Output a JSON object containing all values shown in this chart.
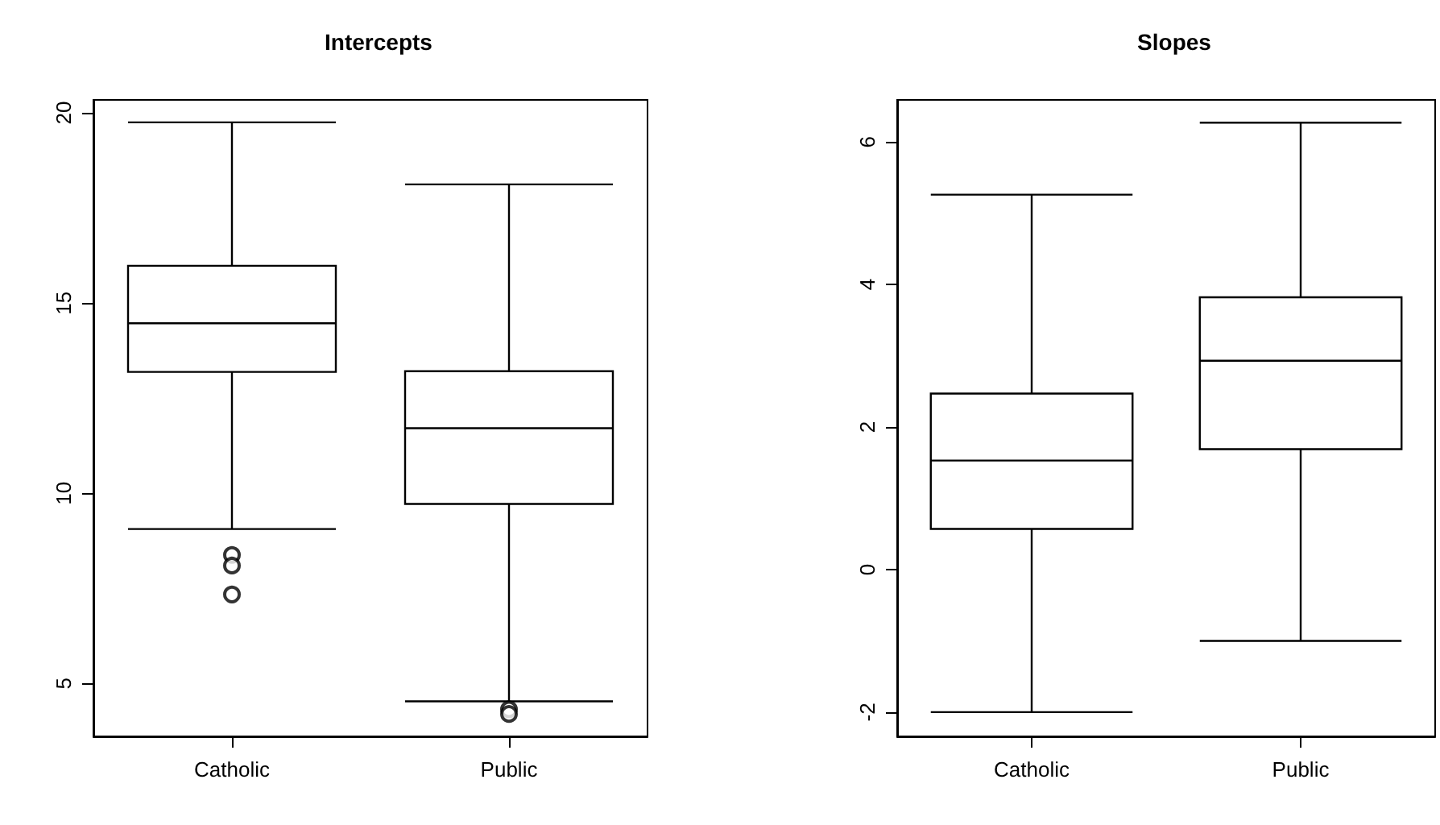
{
  "chart_data": [
    {
      "type": "box",
      "title": "Intercepts",
      "categories": [
        "Catholic",
        "Public"
      ],
      "boxes": [
        {
          "low": 9.06,
          "q1": 13.19,
          "median": 14.47,
          "q3": 15.98,
          "high": 19.75,
          "outliers": [
            8.38,
            8.1,
            7.34
          ]
        },
        {
          "low": 4.53,
          "q1": 9.72,
          "median": 11.71,
          "q3": 13.21,
          "high": 18.12,
          "outliers": [
            4.32,
            4.2
          ]
        }
      ],
      "ylim": [
        3.61,
        20.34
      ],
      "yticks": [
        5,
        10,
        15,
        20
      ],
      "grid": false,
      "marker": "circle"
    },
    {
      "type": "box",
      "title": "Slopes",
      "categories": [
        "Catholic",
        "Public"
      ],
      "boxes": [
        {
          "low": -2.0,
          "q1": 0.57,
          "median": 1.53,
          "q3": 2.47,
          "high": 5.26
        },
        {
          "low": -1.0,
          "q1": 1.69,
          "median": 2.93,
          "q3": 3.82,
          "high": 6.27
        }
      ],
      "ylim": [
        -2.34,
        6.59
      ],
      "yticks": [
        -2,
        0,
        2,
        4,
        6
      ],
      "grid": false
    }
  ]
}
